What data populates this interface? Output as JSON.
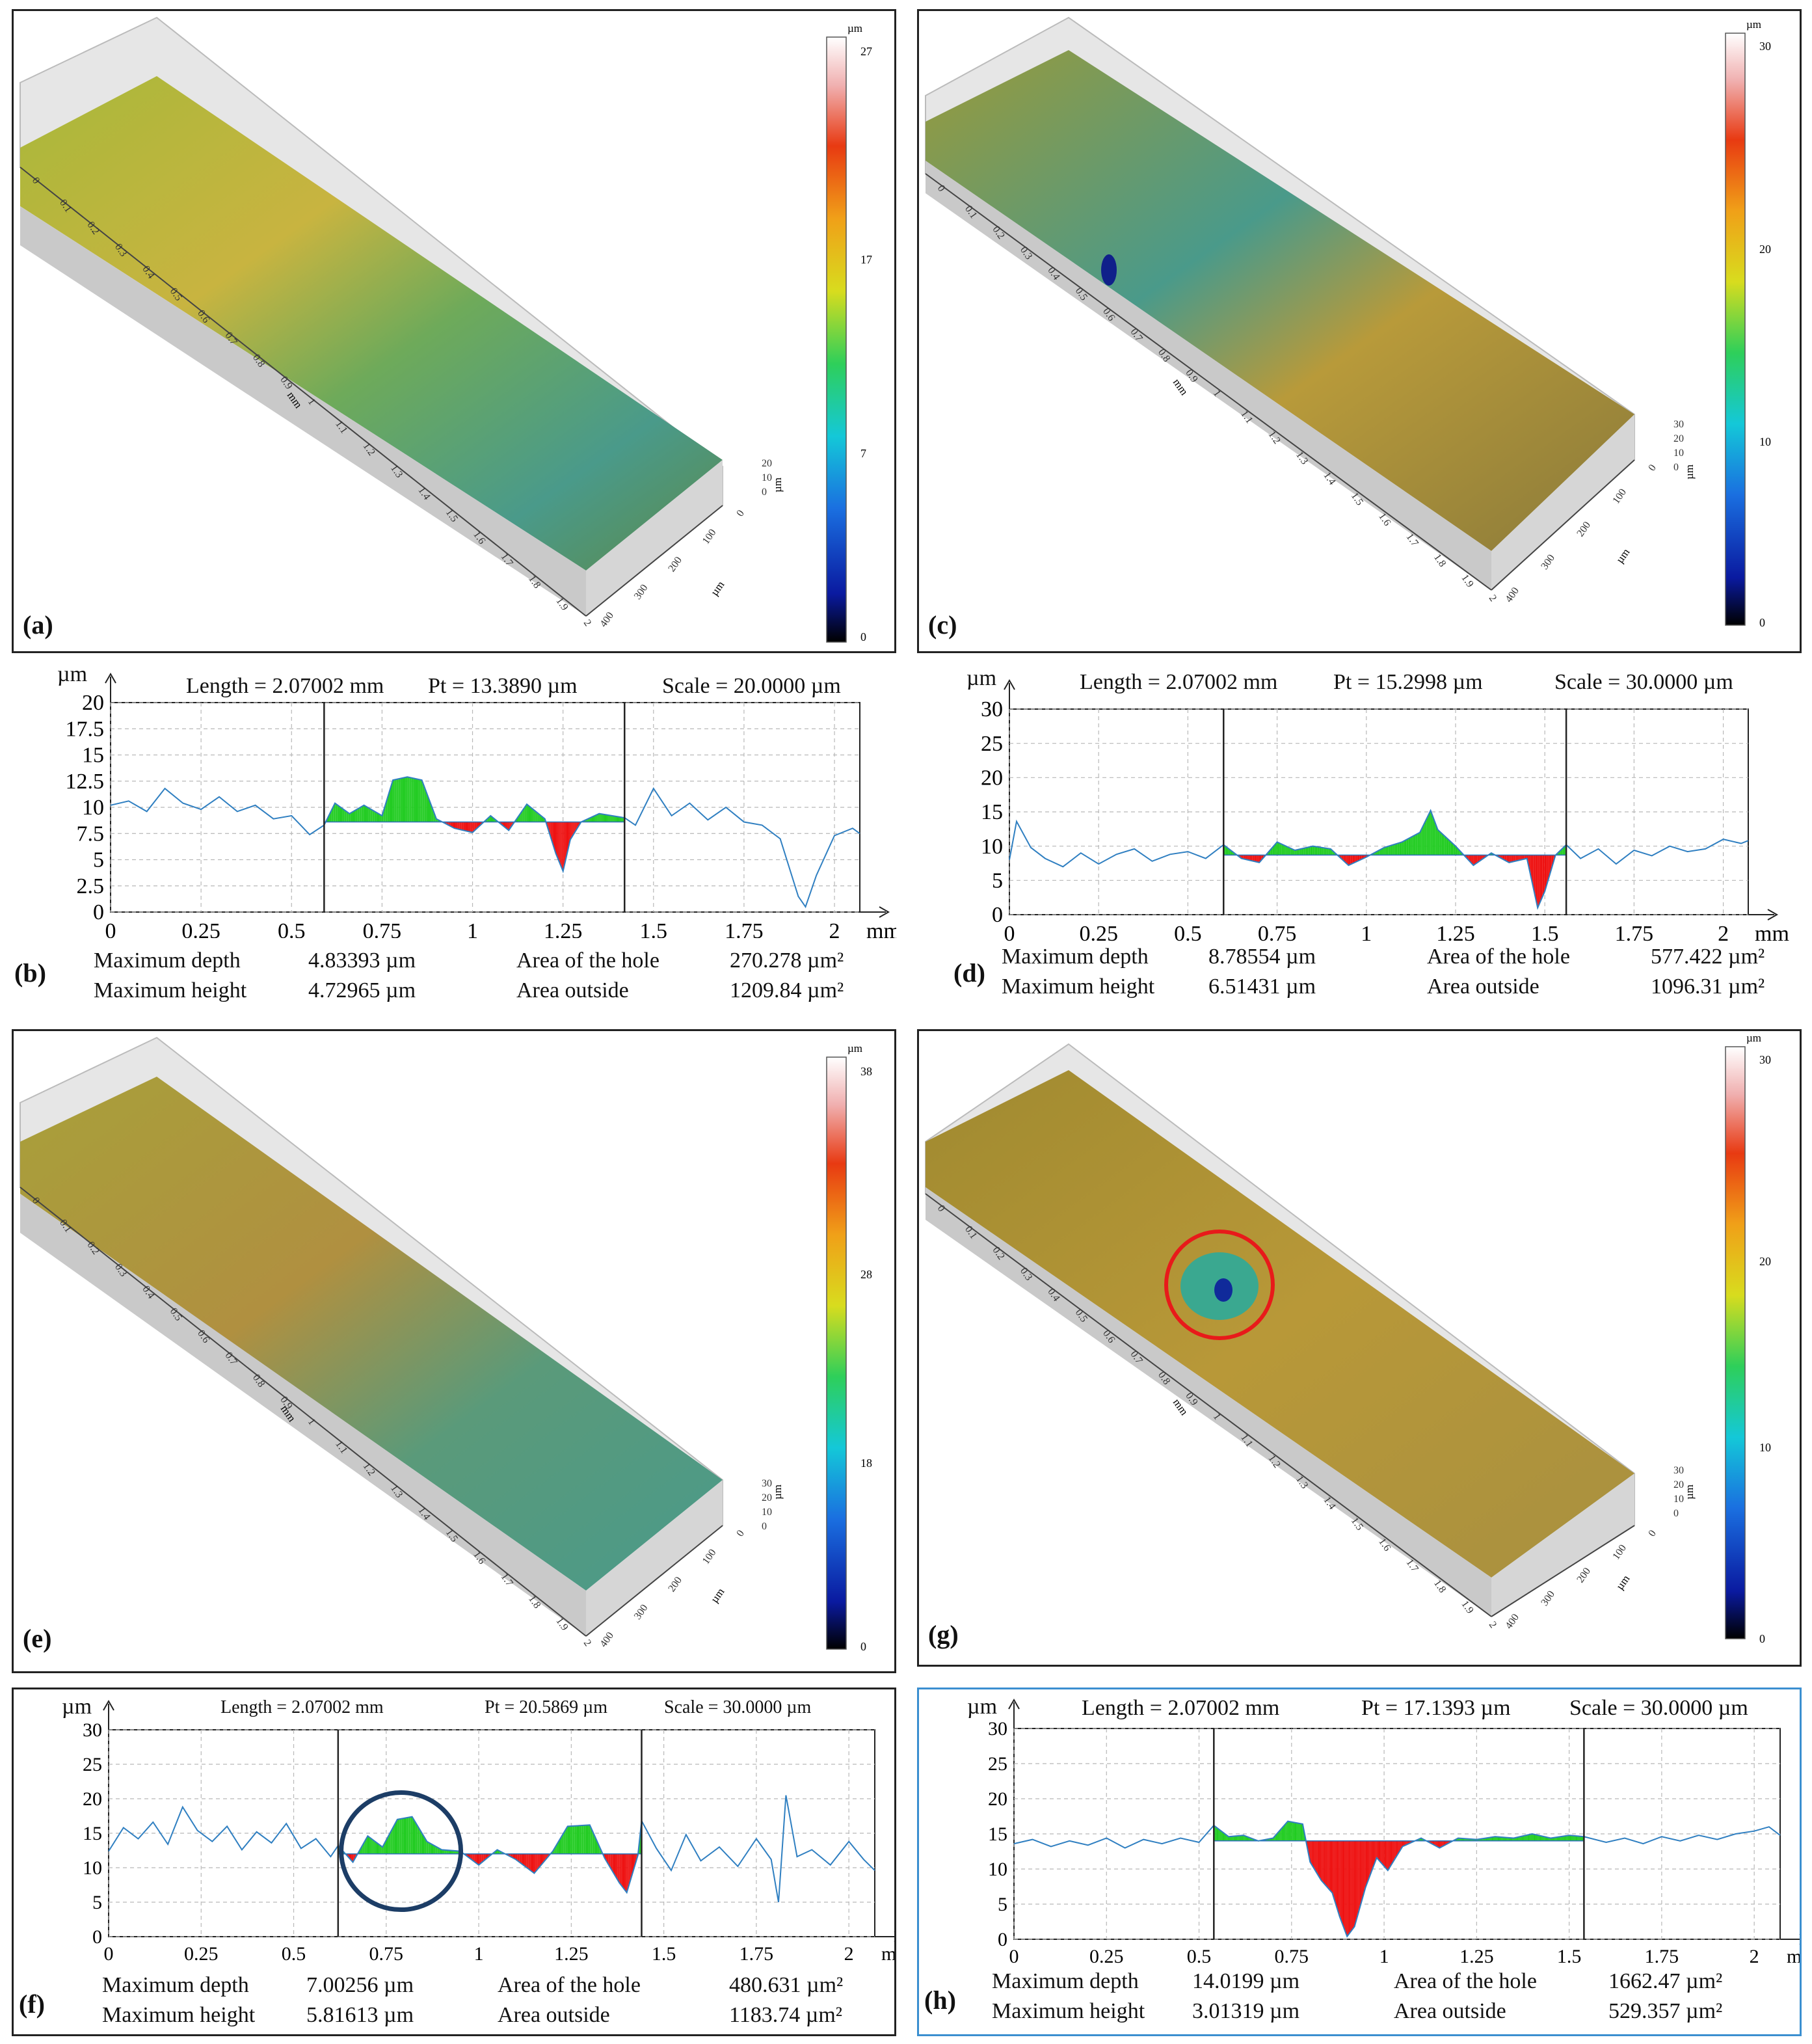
{
  "surfaces": [
    {
      "id": "a",
      "label": "(a)",
      "unit": "µm",
      "ticks": [
        "27",
        "17",
        "7",
        "0"
      ],
      "zticks": [
        "20",
        "10",
        "0"
      ],
      "x_axis_ticks": [
        "0",
        "0.1",
        "0.2",
        "0.3",
        "0.4",
        "0.5",
        "0.6",
        "0.7",
        "0.8",
        "0.9",
        "1",
        "1.1",
        "1.2",
        "1.3",
        "1.4",
        "1.5",
        "1.6",
        "1.7",
        "1.8",
        "1.9",
        "2"
      ],
      "y_axis_ticks": [
        "0",
        "100",
        "200",
        "300",
        "400"
      ],
      "x_unit": "mm",
      "y_unit": "µm",
      "z_unit": "µm"
    },
    {
      "id": "c",
      "label": "(c)",
      "unit": "µm",
      "ticks": [
        "30",
        "20",
        "10",
        "0"
      ],
      "zticks": [
        "30",
        "20",
        "10",
        "0"
      ],
      "x_axis_ticks": [
        "0",
        "0.1",
        "0.2",
        "0.3",
        "0.4",
        "0.5",
        "0.6",
        "0.7",
        "0.8",
        "0.9",
        "1",
        "1.1",
        "1.2",
        "1.3",
        "1.4",
        "1.5",
        "1.6",
        "1.7",
        "1.8",
        "1.9",
        "2"
      ],
      "y_axis_ticks": [
        "0",
        "100",
        "200",
        "300",
        "400"
      ],
      "x_unit": "mm",
      "y_unit": "µm",
      "z_unit": "µm"
    },
    {
      "id": "e",
      "label": "(e)",
      "unit": "µm",
      "ticks": [
        "38",
        "28",
        "18",
        "0"
      ],
      "zticks": [
        "30",
        "20",
        "10",
        "0"
      ],
      "x_axis_ticks": [
        "0",
        "0.1",
        "0.2",
        "0.3",
        "0.4",
        "0.5",
        "0.6",
        "0.7",
        "0.8",
        "0.9",
        "1",
        "1.1",
        "1.2",
        "1.3",
        "1.4",
        "1.5",
        "1.6",
        "1.7",
        "1.8",
        "1.9",
        "2"
      ],
      "y_axis_ticks": [
        "0",
        "100",
        "200",
        "300",
        "400"
      ],
      "x_unit": "mm",
      "y_unit": "µm",
      "z_unit": "µm"
    },
    {
      "id": "g",
      "label": "(g)",
      "unit": "µm",
      "ticks": [
        "30",
        "20",
        "10",
        "0"
      ],
      "zticks": [
        "30",
        "20",
        "10",
        "0"
      ],
      "x_axis_ticks": [
        "0",
        "0.1",
        "0.2",
        "0.3",
        "0.4",
        "0.5",
        "0.6",
        "0.7",
        "0.8",
        "0.9",
        "1",
        "1.1",
        "1.2",
        "1.3",
        "1.4",
        "1.5",
        "1.6",
        "1.7",
        "1.8",
        "1.9",
        "2"
      ],
      "y_axis_ticks": [
        "0",
        "100",
        "200",
        "300",
        "400"
      ],
      "x_unit": "mm",
      "y_unit": "µm",
      "z_unit": "µm"
    }
  ],
  "stat_labels": {
    "max_depth": "Maximum depth",
    "max_height": "Maximum height",
    "area_hole": "Area of the hole",
    "area_outside": "Area outside"
  },
  "chart_data": [
    {
      "id": "b",
      "type": "area",
      "label": "(b)",
      "yunit": "µm",
      "xunit": "mm",
      "title_length": "Length = 2.07002 mm",
      "title_pt": "Pt = 13.3890 µm",
      "title_scale": "Scale = 20.0000 µm",
      "xlim": [
        0,
        2.07
      ],
      "ylim": [
        0,
        20
      ],
      "yticks": [
        "0",
        "2.5",
        "5",
        "7.5",
        "10",
        "12.5",
        "15",
        "17.5",
        "20"
      ],
      "xticks": [
        "0",
        "0.25",
        "0.5",
        "0.75",
        "1",
        "1.25",
        "1.5",
        "1.75",
        "2"
      ],
      "baseline": 8.6,
      "cursors": [
        0.59,
        1.42
      ],
      "max_depth": "4.83393  µm",
      "max_height": "4.72965 µm",
      "area_hole": "270.278 µm²",
      "area_outside": "1209.84 µm²",
      "profile": [
        [
          0,
          10.2
        ],
        [
          0.05,
          10.6
        ],
        [
          0.1,
          9.6
        ],
        [
          0.15,
          11.8
        ],
        [
          0.2,
          10.4
        ],
        [
          0.25,
          9.8
        ],
        [
          0.3,
          11.0
        ],
        [
          0.35,
          9.6
        ],
        [
          0.4,
          10.2
        ],
        [
          0.45,
          8.9
        ],
        [
          0.5,
          9.2
        ],
        [
          0.55,
          7.4
        ],
        [
          0.59,
          8.3
        ],
        [
          0.62,
          10.4
        ],
        [
          0.66,
          9.4
        ],
        [
          0.7,
          10.2
        ],
        [
          0.75,
          9.2
        ],
        [
          0.78,
          12.6
        ],
        [
          0.82,
          12.9
        ],
        [
          0.86,
          12.6
        ],
        [
          0.9,
          8.9
        ],
        [
          0.95,
          8.0
        ],
        [
          1.0,
          7.6
        ],
        [
          1.05,
          9.2
        ],
        [
          1.1,
          7.8
        ],
        [
          1.15,
          10.3
        ],
        [
          1.2,
          8.9
        ],
        [
          1.23,
          5.6
        ],
        [
          1.25,
          3.9
        ],
        [
          1.27,
          6.9
        ],
        [
          1.3,
          8.6
        ],
        [
          1.35,
          9.4
        ],
        [
          1.42,
          9.0
        ],
        [
          1.45,
          8.3
        ],
        [
          1.5,
          11.8
        ],
        [
          1.55,
          9.2
        ],
        [
          1.6,
          10.4
        ],
        [
          1.65,
          8.8
        ],
        [
          1.7,
          10.0
        ],
        [
          1.75,
          8.6
        ],
        [
          1.8,
          8.3
        ],
        [
          1.85,
          7.0
        ],
        [
          1.9,
          1.5
        ],
        [
          1.92,
          0.5
        ],
        [
          1.95,
          3.5
        ],
        [
          2.0,
          7.3
        ],
        [
          2.05,
          8.0
        ],
        [
          2.07,
          7.5
        ]
      ]
    },
    {
      "id": "d",
      "type": "area",
      "label": "(d)",
      "yunit": "µm",
      "xunit": "mm",
      "title_length": "Length = 2.07002 mm",
      "title_pt": "Pt = 15.2998 µm",
      "title_scale": "Scale = 30.0000 µm",
      "xlim": [
        0,
        2.07
      ],
      "ylim": [
        0,
        30
      ],
      "yticks": [
        "0",
        "5",
        "10",
        "15",
        "20",
        "25",
        "30"
      ],
      "xticks": [
        "0",
        "0.25",
        "0.5",
        "0.75",
        "1",
        "1.25",
        "1.5",
        "1.75",
        "2"
      ],
      "baseline": 8.7,
      "cursors": [
        0.6,
        1.56
      ],
      "max_depth": "8.78554  µm",
      "max_height": "6.51431 µm",
      "area_hole": "577.422 µm²",
      "area_outside": "1096.31 µm²",
      "profile": [
        [
          0,
          8.0
        ],
        [
          0.02,
          13.6
        ],
        [
          0.06,
          9.8
        ],
        [
          0.1,
          8.2
        ],
        [
          0.15,
          7.0
        ],
        [
          0.2,
          9.0
        ],
        [
          0.25,
          7.4
        ],
        [
          0.3,
          8.8
        ],
        [
          0.35,
          9.6
        ],
        [
          0.4,
          7.8
        ],
        [
          0.45,
          8.8
        ],
        [
          0.5,
          9.2
        ],
        [
          0.55,
          8.2
        ],
        [
          0.6,
          10.2
        ],
        [
          0.65,
          8.2
        ],
        [
          0.7,
          7.6
        ],
        [
          0.75,
          10.6
        ],
        [
          0.8,
          9.4
        ],
        [
          0.85,
          10.0
        ],
        [
          0.9,
          9.6
        ],
        [
          0.95,
          7.2
        ],
        [
          1.0,
          8.4
        ],
        [
          1.05,
          9.8
        ],
        [
          1.1,
          10.6
        ],
        [
          1.15,
          12.0
        ],
        [
          1.18,
          15.2
        ],
        [
          1.2,
          12.4
        ],
        [
          1.25,
          10.0
        ],
        [
          1.3,
          7.2
        ],
        [
          1.35,
          9.0
        ],
        [
          1.4,
          7.6
        ],
        [
          1.45,
          8.2
        ],
        [
          1.48,
          1.0
        ],
        [
          1.5,
          3.4
        ],
        [
          1.53,
          8.7
        ],
        [
          1.56,
          10.2
        ],
        [
          1.6,
          8.2
        ],
        [
          1.65,
          9.6
        ],
        [
          1.7,
          7.4
        ],
        [
          1.75,
          9.4
        ],
        [
          1.8,
          8.6
        ],
        [
          1.85,
          10.0
        ],
        [
          1.9,
          9.2
        ],
        [
          1.95,
          9.6
        ],
        [
          2.0,
          11.0
        ],
        [
          2.05,
          10.4
        ],
        [
          2.07,
          10.8
        ]
      ]
    },
    {
      "id": "f",
      "type": "area",
      "label": "(f)",
      "yunit": "µm",
      "xunit": "mm",
      "title_length": "Length = 2.07002 mm",
      "title_pt": "Pt = 20.5869 µm",
      "title_scale": "Scale = 30.0000 µm",
      "xlim": [
        0,
        2.07
      ],
      "ylim": [
        0,
        30
      ],
      "yticks": [
        "0",
        "5",
        "10",
        "15",
        "20",
        "25",
        "30"
      ],
      "xticks": [
        "0",
        "0.25",
        "0.5",
        "0.75",
        "1",
        "1.25",
        "1.5",
        "1.75",
        "2"
      ],
      "baseline": 12.0,
      "cursors": [
        0.62,
        1.44
      ],
      "circle": [
        0.79,
        12.4
      ],
      "max_depth": "7.00256  µm",
      "max_height": "5.81613 µm",
      "area_hole": "480.631 µm²",
      "area_outside": "1183.74 µm²",
      "profile": [
        [
          0,
          12.4
        ],
        [
          0.04,
          15.8
        ],
        [
          0.08,
          14.2
        ],
        [
          0.12,
          16.6
        ],
        [
          0.16,
          13.4
        ],
        [
          0.2,
          18.8
        ],
        [
          0.24,
          15.4
        ],
        [
          0.28,
          13.8
        ],
        [
          0.32,
          16.0
        ],
        [
          0.36,
          12.6
        ],
        [
          0.4,
          15.2
        ],
        [
          0.44,
          13.6
        ],
        [
          0.48,
          16.4
        ],
        [
          0.52,
          12.8
        ],
        [
          0.56,
          14.2
        ],
        [
          0.6,
          11.6
        ],
        [
          0.62,
          13.2
        ],
        [
          0.66,
          10.8
        ],
        [
          0.7,
          14.6
        ],
        [
          0.74,
          13.0
        ],
        [
          0.78,
          17.0
        ],
        [
          0.82,
          17.4
        ],
        [
          0.86,
          13.8
        ],
        [
          0.9,
          12.6
        ],
        [
          0.95,
          12.4
        ],
        [
          1.0,
          10.4
        ],
        [
          1.05,
          12.6
        ],
        [
          1.1,
          11.2
        ],
        [
          1.15,
          9.2
        ],
        [
          1.2,
          12.4
        ],
        [
          1.24,
          16.0
        ],
        [
          1.3,
          16.2
        ],
        [
          1.34,
          11.4
        ],
        [
          1.38,
          7.8
        ],
        [
          1.4,
          6.4
        ],
        [
          1.43,
          11.8
        ],
        [
          1.44,
          16.8
        ],
        [
          1.48,
          12.8
        ],
        [
          1.52,
          9.6
        ],
        [
          1.56,
          14.8
        ],
        [
          1.6,
          11.0
        ],
        [
          1.65,
          13.0
        ],
        [
          1.7,
          10.2
        ],
        [
          1.75,
          14.2
        ],
        [
          1.79,
          11.2
        ],
        [
          1.81,
          5.0
        ],
        [
          1.83,
          20.5
        ],
        [
          1.86,
          11.6
        ],
        [
          1.9,
          12.6
        ],
        [
          1.95,
          10.4
        ],
        [
          2.0,
          13.8
        ],
        [
          2.04,
          11.2
        ],
        [
          2.07,
          9.6
        ]
      ]
    },
    {
      "id": "h",
      "type": "area",
      "label": "(h)",
      "yunit": "µm",
      "xunit": "mm",
      "title_length": "Length = 2.07002 mm",
      "title_pt": "Pt = 17.1393 µm",
      "title_scale": "Scale = 30.0000 µm",
      "xlim": [
        0,
        2.07
      ],
      "ylim": [
        0,
        30
      ],
      "yticks": [
        "0",
        "5",
        "10",
        "15",
        "20",
        "25",
        "30"
      ],
      "xticks": [
        "0",
        "0.25",
        "0.5",
        "0.75",
        "1",
        "1.25",
        "1.5",
        "1.75",
        "2"
      ],
      "baseline": 14.0,
      "cursors": [
        0.54,
        1.54
      ],
      "max_depth": "14.0199  µm",
      "max_height": "3.01319 µm",
      "area_hole": "1662.47 µm²",
      "area_outside": "529.357 µm²",
      "profile": [
        [
          0,
          13.6
        ],
        [
          0.05,
          14.2
        ],
        [
          0.1,
          13.2
        ],
        [
          0.15,
          14.0
        ],
        [
          0.2,
          13.4
        ],
        [
          0.25,
          14.4
        ],
        [
          0.3,
          13.0
        ],
        [
          0.35,
          14.2
        ],
        [
          0.4,
          13.6
        ],
        [
          0.45,
          14.4
        ],
        [
          0.5,
          13.8
        ],
        [
          0.54,
          16.2
        ],
        [
          0.58,
          14.6
        ],
        [
          0.62,
          14.8
        ],
        [
          0.66,
          14.0
        ],
        [
          0.7,
          14.4
        ],
        [
          0.74,
          16.8
        ],
        [
          0.78,
          16.4
        ],
        [
          0.8,
          11.0
        ],
        [
          0.83,
          8.4
        ],
        [
          0.86,
          6.6
        ],
        [
          0.88,
          3.2
        ],
        [
          0.9,
          0.4
        ],
        [
          0.92,
          1.8
        ],
        [
          0.95,
          7.4
        ],
        [
          0.98,
          11.6
        ],
        [
          1.01,
          9.8
        ],
        [
          1.05,
          13.2
        ],
        [
          1.1,
          14.4
        ],
        [
          1.15,
          13.0
        ],
        [
          1.2,
          14.4
        ],
        [
          1.25,
          14.2
        ],
        [
          1.3,
          14.6
        ],
        [
          1.35,
          14.4
        ],
        [
          1.4,
          15.0
        ],
        [
          1.45,
          14.4
        ],
        [
          1.5,
          14.8
        ],
        [
          1.54,
          14.6
        ],
        [
          1.6,
          13.8
        ],
        [
          1.65,
          14.4
        ],
        [
          1.7,
          13.6
        ],
        [
          1.75,
          14.6
        ],
        [
          1.8,
          14.0
        ],
        [
          1.85,
          14.8
        ],
        [
          1.9,
          14.2
        ],
        [
          1.95,
          15.0
        ],
        [
          2.0,
          15.4
        ],
        [
          2.04,
          16.0
        ],
        [
          2.07,
          14.8
        ]
      ]
    }
  ]
}
